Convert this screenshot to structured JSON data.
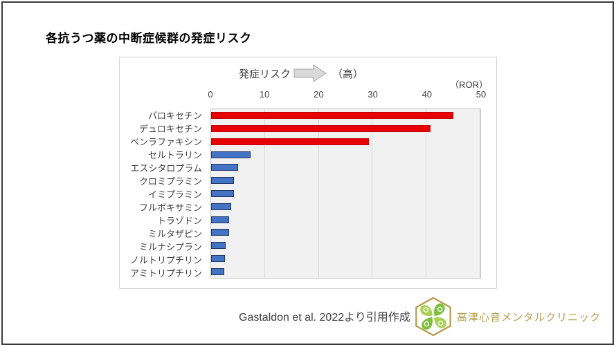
{
  "page": {
    "title": "各抗うつ薬の中断症候群の発症リスク"
  },
  "chart_data": {
    "type": "bar",
    "orientation": "horizontal",
    "title": "各抗うつ薬の中断症候群の発症リスク",
    "header": {
      "risk_label": "発症リスク",
      "arrow_icon": "right-block-arrow",
      "high_label": "（高）"
    },
    "unit_label": "（ROR）",
    "categories": [
      "パロキセチン",
      "デュロキセチン",
      "ベンラファキシン",
      "セルトラリン",
      "エスシタロプラム",
      "クロミプラミン",
      "イミプラミン",
      "フルボキサミン",
      "トラゾドン",
      "ミルタザピン",
      "ミルナシプラン",
      "ノルトリプチリン",
      "アミトリプチリン"
    ],
    "values": [
      45.0,
      40.7,
      29.3,
      7.3,
      5.0,
      4.2,
      4.2,
      3.7,
      3.4,
      3.3,
      2.7,
      2.6,
      2.5
    ],
    "bar_colors": [
      "#e80000",
      "#e80000",
      "#e80000",
      "#4472c4",
      "#4472c4",
      "#4472c4",
      "#4472c4",
      "#4472c4",
      "#4472c4",
      "#4472c4",
      "#4472c4",
      "#4472c4",
      "#4472c4"
    ],
    "bar_border_colors": [
      "#c00000",
      "#c00000",
      "#c00000",
      "#1f3864",
      "#1f3864",
      "#1f3864",
      "#1f3864",
      "#1f3864",
      "#1f3864",
      "#1f3864",
      "#1f3864",
      "#1f3864",
      "#1f3864"
    ],
    "xlim": [
      0,
      50
    ],
    "xticks": [
      0,
      10,
      20,
      30,
      40,
      50
    ],
    "grid": true,
    "plot_background": "#f1f1f1",
    "gridline_color": "#d9d9d9"
  },
  "footer": {
    "citation": "Gastaldon et al. 2022より引用作成",
    "clinic_name": "高津心音メンタルクリニック",
    "logo_icon": "clover-hexagon-logo",
    "logo_gold": "#b79d4d",
    "logo_green_light": "#a9cf53",
    "logo_green_dark": "#7fbf3f"
  }
}
